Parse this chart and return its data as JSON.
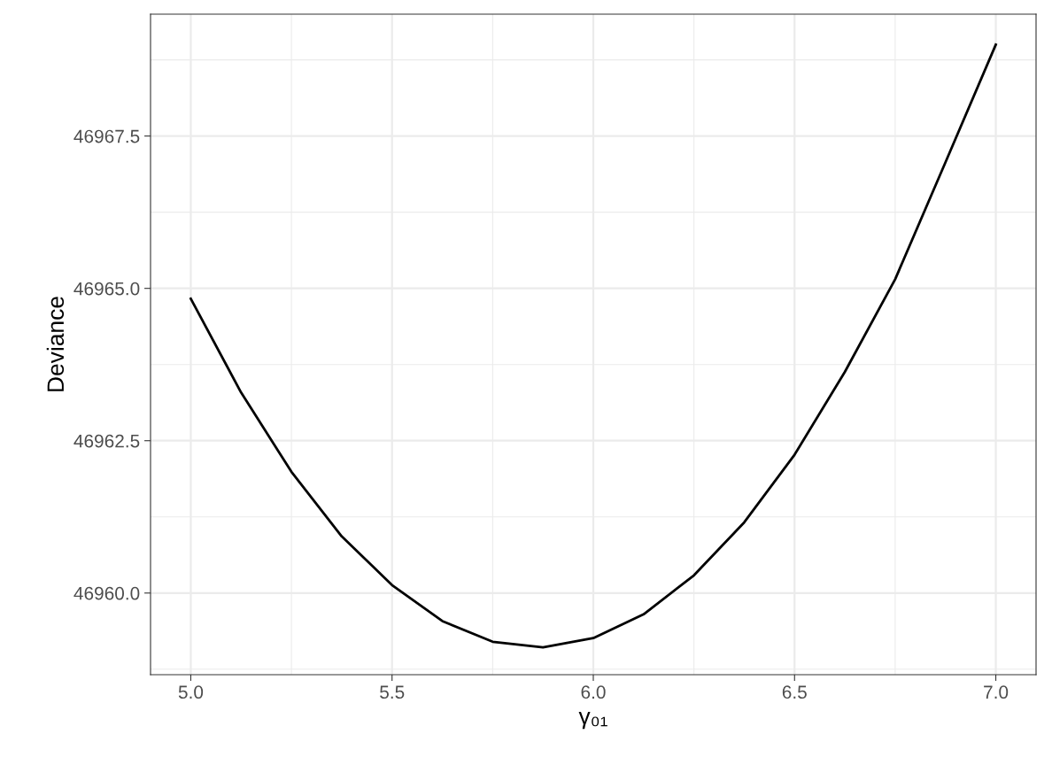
{
  "chart_data": {
    "type": "line",
    "xlabel": "γ₀₁",
    "ylabel": "Deviance",
    "x": [
      5.0,
      5.125,
      5.25,
      5.375,
      5.5,
      5.625,
      5.75,
      5.875,
      6.0,
      6.125,
      6.25,
      6.375,
      6.5,
      6.625,
      6.75,
      6.875,
      7.0
    ],
    "series": [
      {
        "color": "#000000",
        "values": [
          46964.83,
          46963.29,
          46961.99,
          46960.93,
          46960.13,
          46959.54,
          46959.2,
          46959.11,
          46959.26,
          46959.65,
          46960.29,
          46961.16,
          46962.27,
          46963.63,
          46965.15,
          46967.07,
          46969.0
        ]
      }
    ],
    "xlim": [
      4.9,
      7.1
    ],
    "xticks": [
      {
        "value": 5.0,
        "label": "5.0"
      },
      5.5,
      {
        "value": 6.0,
        "label": "6.0"
      },
      6.5,
      {
        "value": 7.0,
        "label": "7.0"
      }
    ],
    "ylim": [
      46958.66,
      46969.5
    ],
    "yticks": [
      {
        "value": 46960,
        "label": "46960.0"
      },
      46962.5,
      {
        "value": 46965,
        "label": "46965.0"
      },
      46967.5
    ],
    "grid": true,
    "marker": "none",
    "line_style": "solid"
  }
}
